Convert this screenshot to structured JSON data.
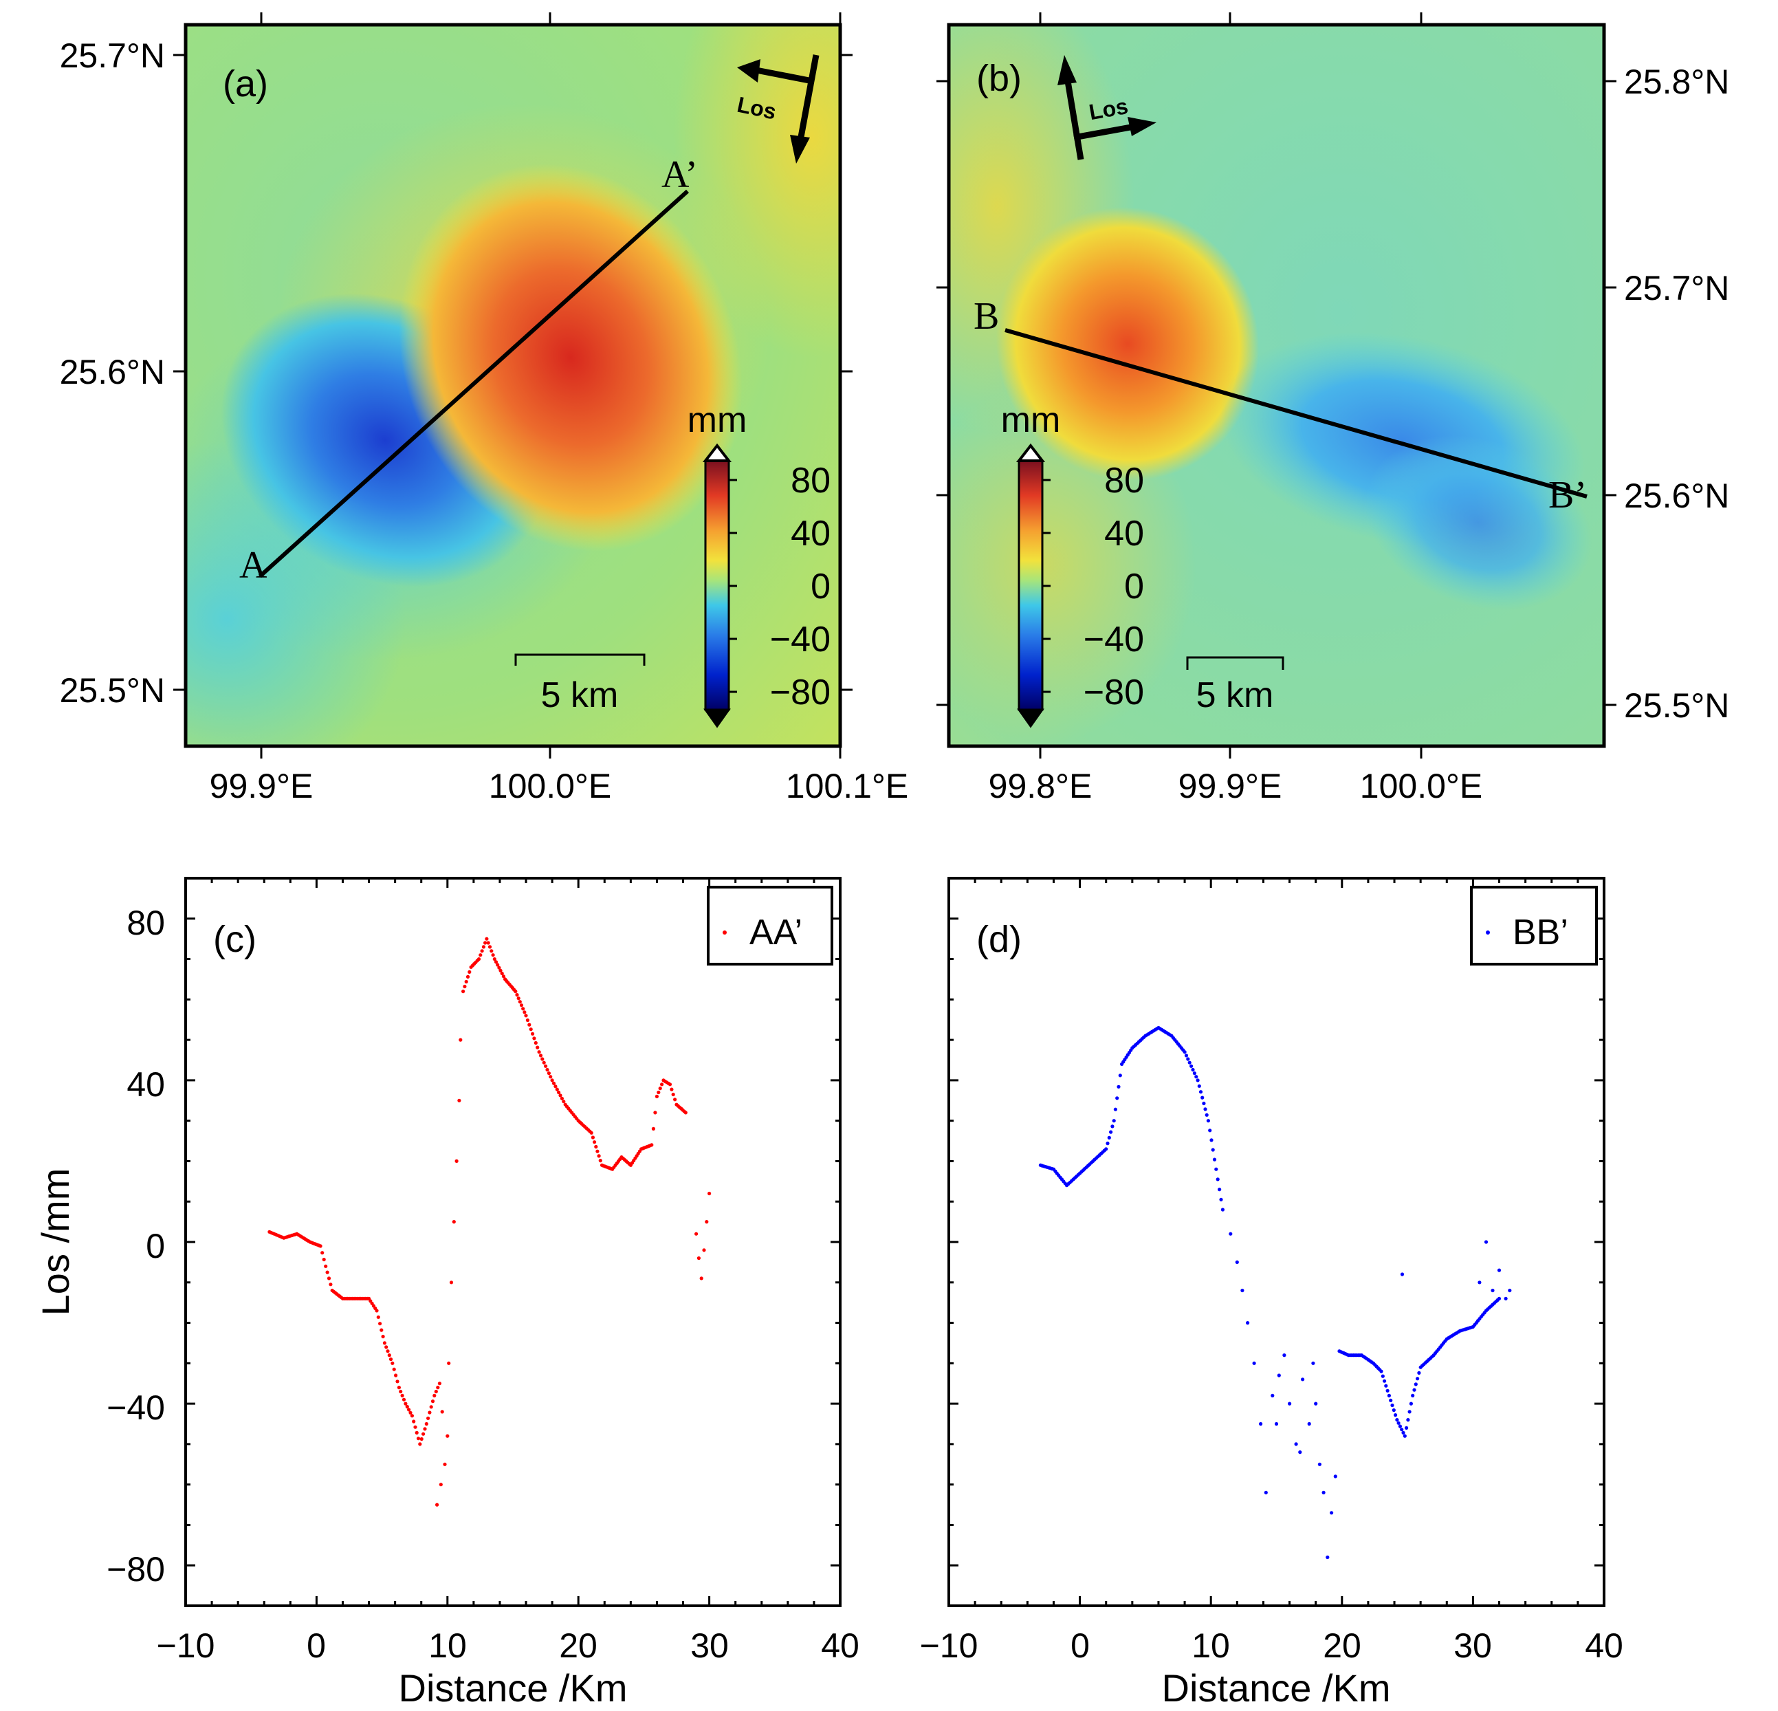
{
  "colors": {
    "profile_a": "#ff0000",
    "profile_b": "#0000ff",
    "deep_blue": "#1a1aa6",
    "blue": "#2f6be0",
    "cyan": "#46c9e6",
    "green": "#a6e07a",
    "yellow": "#f2e23c",
    "orange": "#f07a2a",
    "red": "#c81e1e"
  },
  "map_a": {
    "panel_label": "(a)",
    "lat_ticks": [
      "25.7°N",
      "25.6°N",
      "25.5°N"
    ],
    "lon_ticks": [
      "99.9°E",
      "100.0°E",
      "100.1°E"
    ],
    "profile_start": "A",
    "profile_end": "A’",
    "los_label": "Los",
    "scale_label": "5 km",
    "colorbar": {
      "unit": "mm",
      "ticks": [
        "80",
        "40",
        "0",
        "−40",
        "−80"
      ]
    }
  },
  "map_b": {
    "panel_label": "(b)",
    "lat_ticks": [
      "25.8°N",
      "25.7°N",
      "25.6°N",
      "25.5°N"
    ],
    "lon_ticks": [
      "99.8°E",
      "99.9°E",
      "100.0°E"
    ],
    "profile_start": "B",
    "profile_end": "B’",
    "los_label": "Los",
    "scale_label": "5 km",
    "colorbar": {
      "unit": "mm",
      "ticks": [
        "80",
        "40",
        "0",
        "−40",
        "−80"
      ]
    }
  },
  "chart_data": [
    {
      "type": "scatter",
      "panel_label": "(c)",
      "legend": "AA’",
      "xlabel": "Distance /Km",
      "ylabel": "Los /mm",
      "xlim": [
        -10,
        40
      ],
      "ylim": [
        -90,
        90
      ],
      "x_ticks": [
        "−10",
        "0",
        "10",
        "20",
        "30",
        "40"
      ],
      "y_ticks": [
        "80",
        "40",
        "0",
        "−40",
        "−80"
      ],
      "series": [
        {
          "name": "AA’",
          "line_points": [
            [
              -3.6,
              2.5
            ],
            [
              -2.5,
              1
            ],
            [
              -1.5,
              2
            ],
            [
              -0.5,
              0
            ],
            [
              0.3,
              -1
            ],
            [
              0.7,
              -6
            ],
            [
              1.2,
              -12
            ],
            [
              2,
              -14
            ],
            [
              3,
              -14
            ],
            [
              4,
              -14
            ],
            [
              4.6,
              -17
            ],
            [
              5.2,
              -25
            ],
            [
              5.8,
              -30
            ],
            [
              6.3,
              -36
            ],
            [
              6.8,
              -40
            ],
            [
              7.3,
              -43
            ],
            [
              7.9,
              -50
            ],
            [
              8.4,
              -45
            ],
            [
              9,
              -38
            ],
            [
              9.4,
              -35
            ]
          ],
          "line_points_2": [
            [
              11.2,
              62
            ],
            [
              11.8,
              68
            ],
            [
              12.4,
              70
            ],
            [
              13,
              75
            ],
            [
              13.6,
              70
            ],
            [
              14.4,
              65
            ],
            [
              15.2,
              62
            ],
            [
              16,
              56
            ],
            [
              17,
              47
            ],
            [
              18,
              40
            ],
            [
              19,
              34
            ],
            [
              20,
              30
            ],
            [
              21,
              27
            ],
            [
              21.8,
              19
            ],
            [
              22.6,
              18
            ],
            [
              23.3,
              21
            ],
            [
              24,
              19
            ],
            [
              24.8,
              23
            ],
            [
              25.6,
              24
            ],
            [
              26,
              36
            ],
            [
              26.5,
              40
            ],
            [
              27,
              39
            ],
            [
              27.5,
              34
            ],
            [
              28.2,
              32
            ]
          ],
          "scatter_points": [
            [
              9.6,
              -42
            ],
            [
              9.8,
              -55
            ],
            [
              10,
              -48
            ],
            [
              10.1,
              -30
            ],
            [
              10.3,
              -10
            ],
            [
              10.5,
              5
            ],
            [
              10.7,
              20
            ],
            [
              10.9,
              35
            ],
            [
              11,
              50
            ],
            [
              9.5,
              -60
            ],
            [
              9.2,
              -65
            ],
            [
              29,
              2
            ],
            [
              29.2,
              -4
            ],
            [
              29.4,
              -9
            ],
            [
              29.6,
              -2
            ],
            [
              29.8,
              5
            ],
            [
              30,
              12
            ]
          ]
        }
      ]
    },
    {
      "type": "scatter",
      "panel_label": "(d)",
      "legend": "BB’",
      "xlabel": "Distance /Km",
      "ylabel": "",
      "xlim": [
        -10,
        40
      ],
      "ylim": [
        -90,
        90
      ],
      "x_ticks": [
        "−10",
        "0",
        "10",
        "20",
        "30",
        "40"
      ],
      "series": [
        {
          "name": "BB’",
          "line_points": [
            [
              -3,
              19
            ],
            [
              -2,
              18
            ],
            [
              -1,
              14
            ],
            [
              0,
              17
            ],
            [
              1,
              20
            ],
            [
              2,
              23
            ],
            [
              2.6,
              30
            ],
            [
              3.2,
              44
            ],
            [
              4,
              48
            ],
            [
              5,
              51
            ],
            [
              6,
              53
            ],
            [
              7,
              51
            ],
            [
              8,
              47
            ],
            [
              9,
              40
            ],
            [
              9.8,
              30
            ],
            [
              10.4,
              18
            ],
            [
              10.9,
              8
            ]
          ],
          "line_points_2": [
            [
              19.8,
              -27
            ],
            [
              20.5,
              -28
            ],
            [
              21.5,
              -28
            ],
            [
              22.4,
              -30
            ],
            [
              23,
              -32
            ],
            [
              23.6,
              -38
            ],
            [
              24.2,
              -44
            ],
            [
              24.8,
              -48
            ],
            [
              25.4,
              -38
            ],
            [
              26,
              -31
            ],
            [
              27,
              -28
            ],
            [
              28,
              -24
            ],
            [
              29,
              -22
            ],
            [
              30,
              -21
            ],
            [
              31,
              -17
            ],
            [
              32,
              -14
            ]
          ],
          "scatter_points": [
            [
              11.5,
              2
            ],
            [
              12,
              -5
            ],
            [
              12.4,
              -12
            ],
            [
              12.8,
              -20
            ],
            [
              13.3,
              -30
            ],
            [
              13.8,
              -45
            ],
            [
              14.2,
              -62
            ],
            [
              14.7,
              -38
            ],
            [
              15.2,
              -33
            ],
            [
              15.6,
              -28
            ],
            [
              16,
              -40
            ],
            [
              16.5,
              -50
            ],
            [
              17,
              -34
            ],
            [
              17.5,
              -45
            ],
            [
              18,
              -40
            ],
            [
              18.3,
              -55
            ],
            [
              18.6,
              -62
            ],
            [
              18.9,
              -78
            ],
            [
              19.2,
              -67
            ],
            [
              19.5,
              -58
            ],
            [
              16.8,
              -52
            ],
            [
              17.8,
              -30
            ],
            [
              15,
              -45
            ],
            [
              24.6,
              -8
            ],
            [
              30.5,
              -10
            ],
            [
              31.5,
              -12
            ],
            [
              32,
              -7
            ],
            [
              32.5,
              -14
            ],
            [
              31,
              0
            ],
            [
              32.8,
              -12
            ]
          ]
        }
      ]
    }
  ]
}
